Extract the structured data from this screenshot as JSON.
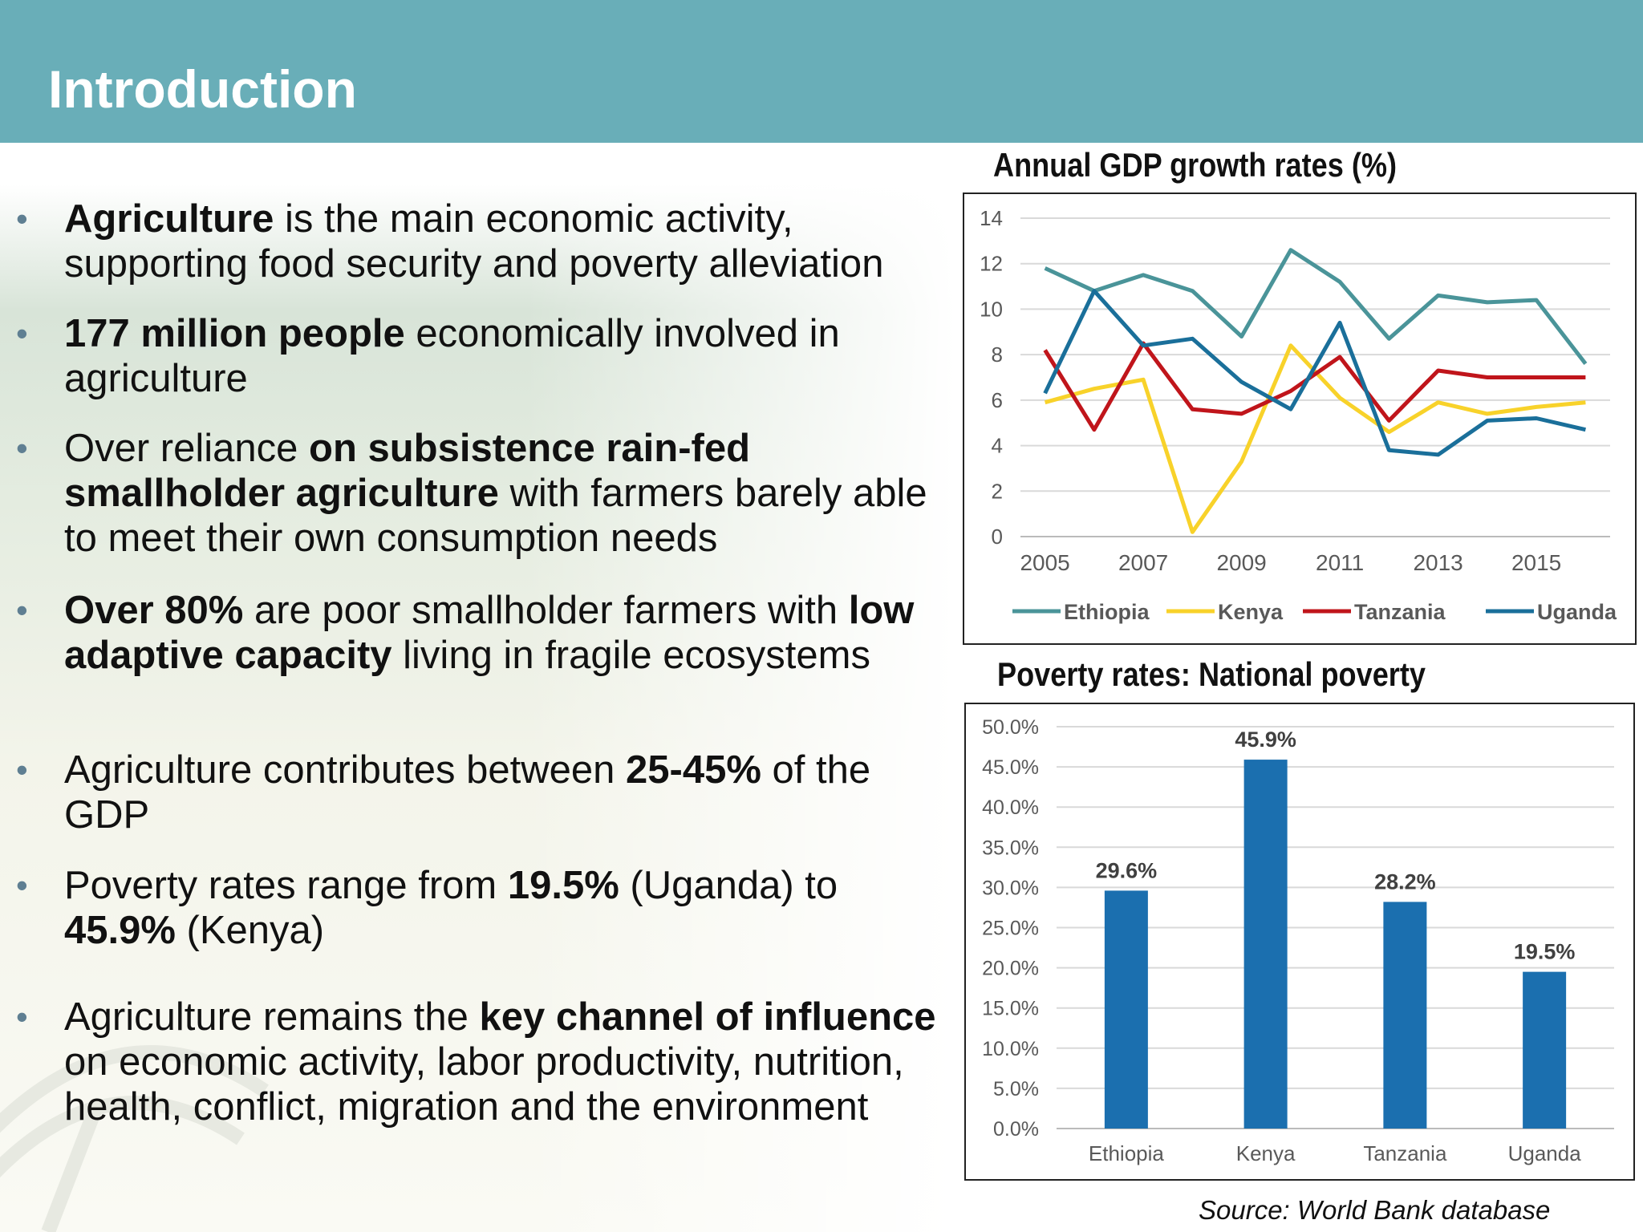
{
  "slide": {
    "title": "Introduction",
    "source": "Source: World Bank database"
  },
  "bullets": [
    [
      {
        "t": "Agriculture",
        "b": true
      },
      {
        "t": " is the main economic activity, supporting food security and poverty alleviation",
        "b": false
      }
    ],
    [
      {
        "t": "177 million people",
        "b": true
      },
      {
        "t": " economically involved in agriculture",
        "b": false
      }
    ],
    [
      {
        "t": "Over reliance ",
        "b": false
      },
      {
        "t": "on subsistence rain-fed smallholder agriculture",
        "b": true
      },
      {
        "t": " with farmers barely able to meet their own consumption needs",
        "b": false
      }
    ],
    [
      {
        "t": "Over 80%",
        "b": true
      },
      {
        "t": " are poor smallholder farmers with ",
        "b": false
      },
      {
        "t": "low adaptive capacity",
        "b": true
      },
      {
        "t": " living in fragile ecosystems",
        "b": false
      }
    ],
    [
      {
        "t": "Agriculture contributes between ",
        "b": false
      },
      {
        "t": "25-45%",
        "b": true
      },
      {
        "t": " of the GDP",
        "b": false
      }
    ],
    [
      {
        "t": "Poverty rates range from ",
        "b": false
      },
      {
        "t": "19.5%",
        "b": true
      },
      {
        "t": " (Uganda) to ",
        "b": false
      },
      {
        "t": "45.9%",
        "b": true
      },
      {
        "t": " (Kenya)",
        "b": false
      }
    ],
    [
      {
        "t": "Agriculture remains the ",
        "b": false
      },
      {
        "t": "key channel of influence",
        "b": true
      },
      {
        "t": " on economic activity, labor productivity, nutrition, health, conflict, migration and the environment",
        "b": false
      }
    ]
  ],
  "chart_data": [
    {
      "type": "line",
      "title": "Annual GDP growth rates (%)",
      "x": [
        2005,
        2006,
        2007,
        2008,
        2009,
        2010,
        2011,
        2012,
        2013,
        2014,
        2015,
        2016
      ],
      "x_tick_labels": [
        "2005",
        "2007",
        "2009",
        "2011",
        "2013",
        "2015"
      ],
      "ylim": [
        0,
        14
      ],
      "y_ticks": [
        0,
        2,
        4,
        6,
        8,
        10,
        12,
        14
      ],
      "grid": true,
      "legend": "bottom",
      "series": [
        {
          "name": "Ethiopia",
          "color": "#4A9499",
          "values": [
            11.8,
            10.8,
            11.5,
            10.8,
            8.8,
            12.6,
            11.2,
            8.7,
            10.6,
            10.3,
            10.4,
            7.6
          ]
        },
        {
          "name": "Kenya",
          "color": "#F8D22A",
          "values": [
            5.9,
            6.5,
            6.9,
            0.2,
            3.3,
            8.4,
            6.1,
            4.6,
            5.9,
            5.4,
            5.7,
            5.9
          ]
        },
        {
          "name": "Tanzania",
          "color": "#C0151B",
          "values": [
            8.2,
            4.7,
            8.5,
            5.6,
            5.4,
            6.4,
            7.9,
            5.1,
            7.3,
            7.0,
            7.0,
            7.0
          ]
        },
        {
          "name": "Uganda",
          "color": "#1A6F9A",
          "values": [
            6.3,
            10.8,
            8.4,
            8.7,
            6.8,
            5.6,
            9.4,
            3.8,
            3.6,
            5.1,
            5.2,
            4.7
          ]
        }
      ]
    },
    {
      "type": "bar",
      "title": "Poverty rates: National poverty",
      "categories": [
        "Ethiopia",
        "Kenya",
        "Tanzania",
        "Uganda"
      ],
      "values": [
        29.6,
        45.9,
        28.2,
        19.5
      ],
      "value_labels": [
        "29.6%",
        "45.9%",
        "28.2%",
        "19.5%"
      ],
      "ylim": [
        0,
        50
      ],
      "y_ticks": [
        0,
        5,
        10,
        15,
        20,
        25,
        30,
        35,
        40,
        45,
        50
      ],
      "y_tick_labels": [
        "0.0%",
        "5.0%",
        "10.0%",
        "15.0%",
        "20.0%",
        "25.0%",
        "30.0%",
        "35.0%",
        "40.0%",
        "45.0%",
        "50.0%"
      ],
      "color": "#1B6FAF",
      "grid": true,
      "legend": "none"
    }
  ]
}
